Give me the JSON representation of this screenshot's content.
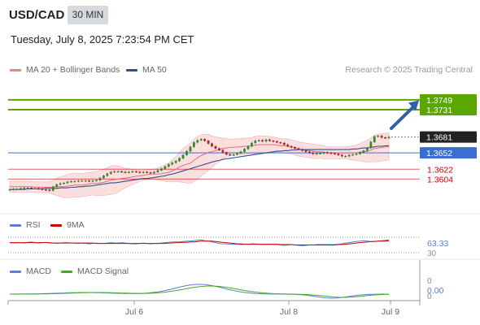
{
  "header": {
    "symbol": "USD/CAD",
    "timeframe": "30 MIN",
    "datetime": "Tuesday, July 8, 2025 7:23:54 PM CET"
  },
  "legend_main": {
    "items": [
      {
        "label": "MA 20 + Bollinger Bands",
        "color": "#f08080"
      },
      {
        "label": "MA 50",
        "color": "#2f4f8f"
      }
    ],
    "source": "Research © 2025 Trading Central"
  },
  "legend_rsi": {
    "items": [
      {
        "label": "RSI",
        "color": "#5b7fd6"
      },
      {
        "label": "9MA",
        "color": "#cc0000"
      }
    ]
  },
  "legend_macd": {
    "items": [
      {
        "label": "MACD",
        "color": "#5b7fd6"
      },
      {
        "label": "MACD Signal",
        "color": "#44aa22"
      }
    ]
  },
  "colors": {
    "target_green": "#5aa700",
    "pivot_blue": "#3a6fd0",
    "support_red": "#cc0000",
    "bb_fill": "#fad4d4",
    "candle_body": "#cc2020",
    "arrow": "#2f5fa8",
    "rsi_line": "#5b7fd6",
    "rsi_ma": "#cc0000",
    "macd_line": "#5b7fd6",
    "macd_signal": "#44aa22"
  },
  "chart_data": {
    "type": "candlestick",
    "main": {
      "y_range": [
        1.356,
        1.378
      ],
      "current_price": "1.3681",
      "levels": [
        {
          "value": "1.3749",
          "role": "target",
          "color": "#5aa700"
        },
        {
          "value": "1.3731",
          "role": "target",
          "color": "#5aa700"
        },
        {
          "value": "1.3652",
          "role": "pivot",
          "color": "#3a6fd0"
        },
        {
          "value": "1.3622",
          "role": "support",
          "color": "#cc0000"
        },
        {
          "value": "1.3604",
          "role": "support",
          "color": "#cc0000"
        }
      ],
      "close_approx": [
        1.3585,
        1.3586,
        1.3586,
        1.3587,
        1.3588,
        1.3588,
        1.3587,
        1.3587,
        1.3586,
        1.3585,
        1.3584,
        1.3583,
        1.359,
        1.3594,
        1.3596,
        1.3597,
        1.3599,
        1.36,
        1.36,
        1.3601,
        1.3601,
        1.3601,
        1.36,
        1.3601,
        1.3602,
        1.3606,
        1.361,
        1.3614,
        1.3617,
        1.3618,
        1.3618,
        1.3617,
        1.3616,
        1.3617,
        1.3618,
        1.3617,
        1.3616,
        1.3617,
        1.3616,
        1.3615,
        1.3617,
        1.362,
        1.3623,
        1.3627,
        1.3631,
        1.3634,
        1.3637,
        1.3642,
        1.3648,
        1.3655,
        1.3663,
        1.3671,
        1.3675,
        1.3677,
        1.3674,
        1.3669,
        1.3664,
        1.366,
        1.3657,
        1.3653,
        1.3649,
        1.3648,
        1.3649,
        1.3651,
        1.3654,
        1.3659,
        1.3664,
        1.367,
        1.3674,
        1.3675,
        1.3673,
        1.3676,
        1.3674,
        1.3673,
        1.3671,
        1.367,
        1.3667,
        1.3664,
        1.3662,
        1.366,
        1.3658,
        1.3656,
        1.3654,
        1.3652,
        1.365,
        1.3651,
        1.3651,
        1.3653,
        1.3652,
        1.3651,
        1.365,
        1.3648,
        1.3646,
        1.3646,
        1.3648,
        1.3649,
        1.365,
        1.3653,
        1.3656,
        1.3661,
        1.3672,
        1.3682,
        1.3683,
        1.368,
        1.3679,
        1.3681
      ],
      "ma20_approx": [
        1.359,
        1.359,
        1.359,
        1.359,
        1.359,
        1.359,
        1.359,
        1.3589,
        1.3589,
        1.3589,
        1.3589,
        1.3589,
        1.3589,
        1.359,
        1.359,
        1.359,
        1.3591,
        1.3592,
        1.3593,
        1.3593,
        1.3593,
        1.3594,
        1.3595,
        1.3596,
        1.3596,
        1.3597,
        1.3598,
        1.36,
        1.3602,
        1.3603,
        1.3604,
        1.3605,
        1.3606,
        1.3607,
        1.3608,
        1.3609,
        1.361,
        1.3611,
        1.3612,
        1.3613,
        1.3613,
        1.3613,
        1.3614,
        1.3615,
        1.3616,
        1.3619,
        1.3622,
        1.3626,
        1.3629,
        1.3631,
        1.3633,
        1.3638,
        1.3643,
        1.3647,
        1.365,
        1.3653,
        1.3654,
        1.3656,
        1.3658,
        1.366,
        1.3661,
        1.3662,
        1.3662,
        1.3663,
        1.3663,
        1.3664,
        1.3664,
        1.3665,
        1.3666,
        1.3667,
        1.3667,
        1.3667,
        1.3667,
        1.3667,
        1.3666,
        1.3665,
        1.3665,
        1.3664,
        1.3663,
        1.3661,
        1.3659,
        1.3658,
        1.3657,
        1.3656,
        1.3655,
        1.3654,
        1.3654,
        1.3653,
        1.3652,
        1.3652,
        1.3652,
        1.3652,
        1.3652,
        1.3652,
        1.3652,
        1.3652,
        1.3652,
        1.3653,
        1.3654,
        1.3655,
        1.3657,
        1.366,
        1.3661,
        1.3662,
        1.3663,
        1.3663
      ],
      "bb_width_approx": [
        0.001,
        0.001,
        0.001,
        0.001,
        0.001,
        0.001,
        0.001,
        0.001,
        0.001,
        0.001,
        0.001,
        0.001,
        0.0013,
        0.0016,
        0.0018,
        0.002,
        0.0021,
        0.0022,
        0.0022,
        0.0022,
        0.0021,
        0.0021,
        0.0021,
        0.0021,
        0.0022,
        0.0023,
        0.0024,
        0.0025,
        0.0026,
        0.0026,
        0.0024,
        0.0021,
        0.0018,
        0.0016,
        0.0014,
        0.0012,
        0.001,
        0.0009,
        0.0009,
        0.0009,
        0.0009,
        0.0011,
        0.0013,
        0.0015,
        0.0017,
        0.002,
        0.0023,
        0.0027,
        0.0031,
        0.0034,
        0.0037,
        0.0039,
        0.0039,
        0.0038,
        0.0036,
        0.0033,
        0.0029,
        0.0025,
        0.0022,
        0.0019,
        0.0017,
        0.0015,
        0.0015,
        0.0015,
        0.0015,
        0.0015,
        0.0015,
        0.0015,
        0.0016,
        0.0016,
        0.0016,
        0.0016,
        0.0015,
        0.0014,
        0.0013,
        0.0013,
        0.0013,
        0.0013,
        0.0013,
        0.0013,
        0.0013,
        0.0013,
        0.0013,
        0.0013,
        0.0013,
        0.0013,
        0.0012,
        0.0012,
        0.0011,
        0.0011,
        0.0011,
        0.0011,
        0.0011,
        0.0011,
        0.0012,
        0.0013,
        0.0014,
        0.0016,
        0.0018,
        0.002,
        0.0022,
        0.0024,
        0.0025,
        0.0025,
        0.0025,
        0.0025
      ],
      "ma50_approx": [
        1.3585,
        1.3585,
        1.3585,
        1.3585,
        1.3585,
        1.3586,
        1.3586,
        1.3586,
        1.3586,
        1.3586,
        1.3587,
        1.3587,
        1.3587,
        1.3587,
        1.3588,
        1.3588,
        1.3588,
        1.3589,
        1.3589,
        1.359,
        1.359,
        1.3591,
        1.3591,
        1.3592,
        1.3593,
        1.3594,
        1.3595,
        1.3596,
        1.3597,
        1.3597,
        1.3598,
        1.3599,
        1.36,
        1.3601,
        1.3602,
        1.3603,
        1.3604,
        1.3605,
        1.3605,
        1.3606,
        1.3607,
        1.3608,
        1.3609,
        1.361,
        1.3612,
        1.3613,
        1.3615,
        1.3617,
        1.3619,
        1.3621,
        1.3623,
        1.3625,
        1.3627,
        1.3629,
        1.3631,
        1.3633,
        1.3635,
        1.3637,
        1.3638,
        1.364,
        1.3641,
        1.3642,
        1.3643,
        1.3644,
        1.3645,
        1.3646,
        1.3647,
        1.3648,
        1.3649,
        1.365,
        1.3651,
        1.3652,
        1.3653,
        1.3654,
        1.3655,
        1.3655,
        1.3656,
        1.3656,
        1.3657,
        1.3657,
        1.3658,
        1.3658,
        1.3658,
        1.3658,
        1.3658,
        1.3658,
        1.3658,
        1.3658,
        1.3658,
        1.3658,
        1.3658,
        1.3658,
        1.3658,
        1.3658,
        1.3658,
        1.3659,
        1.3659,
        1.366,
        1.3661,
        1.3661,
        1.3662,
        1.3663,
        1.3664,
        1.3664,
        1.3665,
        1.3665
      ]
    },
    "rsi": {
      "y_range": [
        30,
        70
      ],
      "tick_labels": [
        "30"
      ],
      "current_value": "63.33",
      "values_approx": [
        56,
        55,
        56,
        56,
        55,
        57,
        58,
        56,
        55,
        56,
        57,
        55,
        55,
        54,
        55,
        56,
        56,
        55,
        55,
        54,
        55,
        54,
        53,
        54,
        55,
        54,
        54,
        55,
        56,
        55,
        55,
        56,
        55,
        54,
        53,
        53,
        54,
        55,
        54,
        53,
        54,
        54,
        55,
        56,
        57,
        58,
        58,
        58,
        59,
        60,
        60,
        61,
        62,
        63,
        61,
        60,
        58,
        56,
        54,
        53,
        53,
        52,
        52,
        52,
        51,
        52,
        52,
        53,
        53,
        52,
        51,
        51,
        52,
        51,
        51,
        50,
        49,
        50,
        51,
        50,
        49,
        48,
        49,
        50,
        50,
        51,
        51,
        51,
        51,
        51,
        51,
        52,
        53,
        55,
        56,
        58,
        59,
        60,
        61,
        60,
        59,
        59,
        60,
        61,
        62,
        63
      ],
      "ma_values_approx": [
        56,
        56,
        56,
        56,
        56,
        56,
        56,
        56,
        56,
        56,
        56,
        56,
        55,
        55,
        55,
        55,
        55,
        55,
        55,
        55,
        55,
        55,
        55,
        55,
        54,
        54,
        54,
        54,
        54,
        54,
        54,
        54,
        54,
        54,
        54,
        54,
        54,
        54,
        54,
        54,
        54,
        54,
        54,
        54,
        55,
        55,
        56,
        56,
        57,
        57,
        58,
        58,
        59,
        60,
        60,
        60,
        60,
        59,
        58,
        57,
        56,
        55,
        54,
        53,
        53,
        52,
        52,
        52,
        52,
        52,
        52,
        52,
        52,
        52,
        52,
        51,
        51,
        51,
        51,
        50,
        50,
        50,
        50,
        50,
        50,
        50,
        50,
        50,
        50,
        50,
        50,
        51,
        51,
        52,
        53,
        54,
        55,
        56,
        57,
        58,
        59,
        59,
        60,
        60,
        60,
        61
      ]
    },
    "macd": {
      "tick_labels": [
        "0",
        "0"
      ],
      "current_value": "0.00",
      "macd_values_approx": [
        0,
        0,
        0,
        0,
        0,
        0,
        0,
        0,
        0,
        0,
        0,
        0,
        0,
        0,
        0,
        0,
        0,
        0,
        0,
        0,
        0,
        0,
        0,
        0,
        0,
        0,
        0,
        0,
        0,
        0,
        0,
        0,
        0,
        0,
        0,
        0,
        0,
        0,
        0,
        0,
        0,
        0,
        0,
        0,
        0,
        0,
        0,
        0,
        0,
        0,
        0,
        0,
        0,
        0,
        0,
        0,
        0,
        0,
        0,
        0,
        0,
        0,
        0,
        0,
        0,
        0,
        0,
        0,
        0,
        0,
        0,
        0,
        0,
        0,
        0,
        0,
        0,
        0,
        0,
        0,
        0,
        0,
        0,
        0,
        0,
        0,
        0,
        0,
        0,
        0,
        0,
        0,
        0,
        0,
        0,
        0,
        0,
        0,
        0,
        0,
        0,
        0,
        0,
        0,
        0,
        0
      ],
      "signal_values_approx": [
        0,
        0,
        0,
        0,
        0,
        0,
        0,
        0,
        0,
        0,
        0,
        0,
        0,
        0,
        0,
        0,
        0,
        0,
        0,
        0,
        0,
        0,
        0,
        0,
        0,
        0,
        0,
        0,
        0,
        0,
        0,
        0,
        0,
        0,
        0,
        0,
        0,
        0,
        0,
        0,
        0,
        0,
        0,
        0,
        0,
        0,
        0,
        0,
        0,
        0,
        0,
        0,
        0,
        0,
        0,
        0,
        0,
        0,
        0,
        0,
        0,
        0,
        0,
        0,
        0,
        0,
        0,
        0,
        0,
        0,
        0,
        0,
        0,
        0,
        0,
        0,
        0,
        0,
        0,
        0,
        0,
        0,
        0,
        0,
        0,
        0,
        0,
        0,
        0,
        0,
        0,
        0,
        0,
        0,
        0,
        0,
        0,
        0,
        0,
        0,
        0,
        0,
        0,
        0,
        0,
        0
      ]
    },
    "x_axis": {
      "tick_labels": [
        "Jul 6",
        "Jul 8",
        "Jul 9"
      ]
    }
  }
}
